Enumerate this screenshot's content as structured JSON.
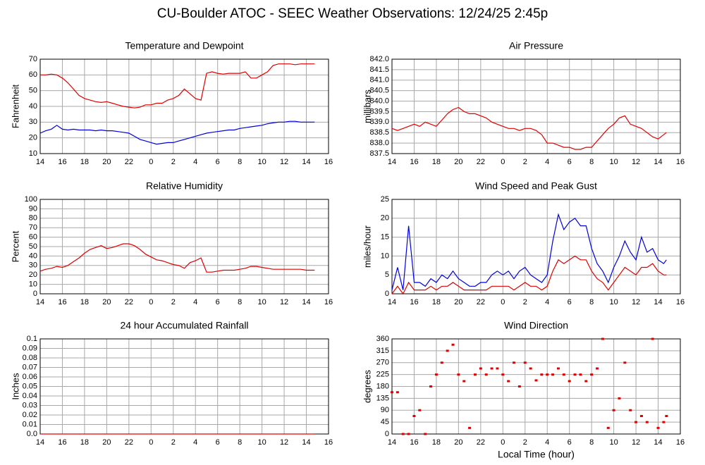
{
  "title": "CU-Boulder ATOC - SEEC Weather Observations: 12/24/25 2:45p",
  "chart_data": [
    {
      "type": "line",
      "title": "Temperature and Dewpoint",
      "y_label": "Fahrenheit",
      "x": [
        14,
        14.5,
        15,
        15.5,
        16,
        16.5,
        17,
        17.5,
        18,
        18.5,
        19,
        19.5,
        20,
        20.5,
        21,
        21.5,
        22,
        22.5,
        23,
        23.5,
        24,
        24.5,
        25,
        25.5,
        26,
        26.5,
        27,
        27.5,
        28,
        28.5,
        29,
        29.5,
        30,
        30.5,
        31,
        31.5,
        32,
        32.5,
        33,
        33.5,
        34,
        34.5,
        35,
        35.5,
        36,
        36.5,
        37,
        37.5,
        38,
        38.5,
        38.75
      ],
      "series": [
        {
          "color": "#e00000",
          "values": [
            60,
            60,
            60.5,
            60,
            58,
            55,
            51,
            47,
            45,
            44,
            43,
            42.5,
            43,
            42,
            41,
            40,
            39.5,
            39,
            39.5,
            41,
            41,
            42,
            42,
            44,
            45,
            47,
            51,
            48,
            45,
            44,
            61,
            62,
            61,
            60.5,
            61,
            61,
            61,
            62,
            58,
            58,
            60,
            62,
            66,
            67,
            67,
            67,
            66.5,
            67,
            67,
            67,
            67
          ]
        },
        {
          "color": "#0000e0",
          "values": [
            23,
            24.5,
            25.5,
            28,
            25.5,
            25,
            25.5,
            25,
            25,
            25,
            24.5,
            25,
            24.5,
            24.5,
            24,
            23.5,
            23,
            21,
            19,
            18,
            17,
            16,
            16.5,
            17,
            17,
            18,
            19,
            20,
            21,
            22,
            23,
            23.5,
            24,
            24.5,
            25,
            25,
            26,
            26.5,
            27,
            27.5,
            28,
            29,
            29.5,
            30,
            30,
            30.5,
            30.5,
            30,
            30,
            30,
            30
          ]
        }
      ],
      "xlim": [
        14,
        40
      ],
      "xticks": [
        14,
        16,
        18,
        20,
        22,
        {
          "value": 24,
          "label": "0"
        },
        {
          "value": 26,
          "label": "2"
        },
        {
          "value": 28,
          "label": "4"
        },
        {
          "value": 30,
          "label": "6"
        },
        {
          "value": 32,
          "label": "8"
        },
        {
          "value": 34,
          "label": "10"
        },
        {
          "value": 36,
          "label": "12"
        },
        {
          "value": 38,
          "label": "14"
        },
        {
          "value": 40,
          "label": "16"
        }
      ],
      "ylim": [
        10,
        70
      ],
      "yticks": [
        10,
        20,
        30,
        40,
        50,
        60,
        70
      ],
      "grid": true
    },
    {
      "type": "line",
      "title": "Air Pressure",
      "y_label": "millibars",
      "x": [
        14,
        14.5,
        15,
        15.5,
        16,
        16.5,
        17,
        17.5,
        18,
        18.5,
        19,
        19.5,
        20,
        20.5,
        21,
        21.5,
        22,
        22.5,
        23,
        23.5,
        24,
        24.5,
        25,
        25.5,
        26,
        26.5,
        27,
        27.5,
        28,
        28.5,
        29,
        29.5,
        30,
        30.5,
        31,
        31.5,
        32,
        32.5,
        33,
        33.5,
        34,
        34.5,
        35,
        35.5,
        36,
        36.5,
        37,
        37.5,
        38,
        38.5,
        38.75
      ],
      "series": [
        {
          "color": "#e00000",
          "values": [
            838.7,
            838.6,
            838.7,
            838.8,
            838.9,
            838.8,
            839.0,
            838.9,
            838.8,
            839.1,
            839.4,
            839.6,
            839.7,
            839.5,
            839.4,
            839.4,
            839.3,
            839.2,
            839.0,
            838.9,
            838.8,
            838.7,
            838.7,
            838.6,
            838.7,
            838.7,
            838.6,
            838.4,
            838.0,
            838.0,
            837.9,
            837.8,
            837.8,
            837.7,
            837.7,
            837.8,
            837.8,
            838.1,
            838.4,
            838.7,
            838.9,
            839.2,
            839.3,
            838.9,
            838.8,
            838.7,
            838.5,
            838.3,
            838.2,
            838.4,
            838.5
          ]
        }
      ],
      "xlim": [
        14,
        40
      ],
      "xticks": [
        14,
        16,
        18,
        20,
        22,
        {
          "value": 24,
          "label": "0"
        },
        {
          "value": 26,
          "label": "2"
        },
        {
          "value": 28,
          "label": "4"
        },
        {
          "value": 30,
          "label": "6"
        },
        {
          "value": 32,
          "label": "8"
        },
        {
          "value": 34,
          "label": "10"
        },
        {
          "value": 36,
          "label": "12"
        },
        {
          "value": 38,
          "label": "14"
        },
        {
          "value": 40,
          "label": "16"
        }
      ],
      "ylim": [
        837.5,
        842.0
      ],
      "yticks": [
        837.5,
        {
          "value": 838,
          "label": "838.0"
        },
        838.5,
        {
          "value": 839,
          "label": "839.0"
        },
        839.5,
        {
          "value": 840,
          "label": "840.0"
        },
        840.5,
        {
          "value": 841,
          "label": "841.0"
        },
        841.5,
        {
          "value": 842,
          "label": "842.0"
        }
      ],
      "grid": true
    },
    {
      "type": "line",
      "title": "Relative Humidity",
      "y_label": "Percent",
      "x": [
        14,
        14.5,
        15,
        15.5,
        16,
        16.5,
        17,
        17.5,
        18,
        18.5,
        19,
        19.5,
        20,
        20.5,
        21,
        21.5,
        22,
        22.5,
        23,
        23.5,
        24,
        24.5,
        25,
        25.5,
        26,
        26.5,
        27,
        27.5,
        28,
        28.5,
        29,
        29.5,
        30,
        30.5,
        31,
        31.5,
        32,
        32.5,
        33,
        33.5,
        34,
        34.5,
        35,
        35.5,
        36,
        36.5,
        37,
        37.5,
        38,
        38.5,
        38.75
      ],
      "series": [
        {
          "color": "#e00000",
          "values": [
            24,
            26,
            27,
            29,
            28,
            30,
            34,
            38,
            43,
            47,
            49,
            51,
            48,
            49,
            51,
            53,
            53,
            51,
            47,
            42,
            39,
            36,
            35,
            33,
            31,
            30,
            27,
            33,
            35,
            38,
            23,
            23,
            24,
            25,
            25,
            25,
            26,
            27,
            29,
            29,
            28,
            27,
            26,
            26,
            26,
            26,
            26,
            26,
            25,
            25,
            25
          ]
        }
      ],
      "xlim": [
        14,
        40
      ],
      "xticks": [
        14,
        16,
        18,
        20,
        22,
        {
          "value": 24,
          "label": "0"
        },
        {
          "value": 26,
          "label": "2"
        },
        {
          "value": 28,
          "label": "4"
        },
        {
          "value": 30,
          "label": "6"
        },
        {
          "value": 32,
          "label": "8"
        },
        {
          "value": 34,
          "label": "10"
        },
        {
          "value": 36,
          "label": "12"
        },
        {
          "value": 38,
          "label": "14"
        },
        {
          "value": 40,
          "label": "16"
        }
      ],
      "ylim": [
        0,
        100
      ],
      "yticks": [
        0,
        10,
        20,
        30,
        40,
        50,
        60,
        70,
        80,
        90,
        100
      ],
      "grid": true
    },
    {
      "type": "line",
      "title": "Wind Speed and Peak Gust",
      "y_label": "miles/hour",
      "x": [
        14,
        14.5,
        15,
        15.5,
        16,
        16.5,
        17,
        17.5,
        18,
        18.5,
        19,
        19.5,
        20,
        20.5,
        21,
        21.5,
        22,
        22.5,
        23,
        23.5,
        24,
        24.5,
        25,
        25.5,
        26,
        26.5,
        27,
        27.5,
        28,
        28.5,
        29,
        29.5,
        30,
        30.5,
        31,
        31.5,
        32,
        32.5,
        33,
        33.5,
        34,
        34.5,
        35,
        35.5,
        36,
        36.5,
        37,
        37.5,
        38,
        38.5,
        38.75
      ],
      "series": [
        {
          "color": "#0000e0",
          "values": [
            1,
            7,
            1,
            18,
            3,
            3,
            2,
            4,
            3,
            5,
            4,
            6,
            4,
            3,
            2,
            2,
            3,
            3,
            5,
            6,
            5,
            6,
            4,
            6,
            7,
            5,
            4,
            3,
            5,
            14,
            21,
            17,
            19,
            20,
            18,
            18,
            12,
            8,
            6,
            3,
            7,
            10,
            14,
            11,
            9,
            15,
            11,
            12,
            9,
            8,
            9
          ]
        },
        {
          "color": "#e00000",
          "values": [
            0,
            2,
            0,
            3,
            1,
            1,
            1,
            2,
            1,
            2,
            2,
            3,
            2,
            1,
            1,
            1,
            1,
            1,
            2,
            2,
            2,
            2,
            1,
            2,
            3,
            2,
            2,
            1,
            2,
            6,
            9,
            8,
            9,
            10,
            9,
            9,
            6,
            4,
            3,
            1,
            3,
            5,
            7,
            6,
            5,
            7,
            7,
            8,
            6,
            5,
            5
          ]
        }
      ],
      "xlim": [
        14,
        40
      ],
      "xticks": [
        14,
        16,
        18,
        20,
        22,
        {
          "value": 24,
          "label": "0"
        },
        {
          "value": 26,
          "label": "2"
        },
        {
          "value": 28,
          "label": "4"
        },
        {
          "value": 30,
          "label": "6"
        },
        {
          "value": 32,
          "label": "8"
        },
        {
          "value": 34,
          "label": "10"
        },
        {
          "value": 36,
          "label": "12"
        },
        {
          "value": 38,
          "label": "14"
        },
        {
          "value": 40,
          "label": "16"
        }
      ],
      "ylim": [
        0,
        25
      ],
      "yticks": [
        0,
        5,
        10,
        15,
        20,
        25
      ],
      "grid": true
    },
    {
      "type": "line",
      "title": "24 hour Accumulated Rainfall",
      "y_label": "Inches",
      "x": [
        14,
        38.75
      ],
      "series": [
        {
          "color": "#e00000",
          "values": [
            0,
            0
          ]
        }
      ],
      "xlim": [
        14,
        40
      ],
      "xticks": [
        14,
        16,
        18,
        20,
        22,
        {
          "value": 24,
          "label": "0"
        },
        {
          "value": 26,
          "label": "2"
        },
        {
          "value": 28,
          "label": "4"
        },
        {
          "value": 30,
          "label": "6"
        },
        {
          "value": 32,
          "label": "8"
        },
        {
          "value": 34,
          "label": "10"
        },
        {
          "value": 36,
          "label": "12"
        },
        {
          "value": 38,
          "label": "14"
        },
        {
          "value": 40,
          "label": "16"
        }
      ],
      "ylim": [
        0,
        0.1
      ],
      "yticks": [
        {
          "value": 0,
          "label": "0.0"
        },
        0.01,
        0.02,
        0.03,
        0.04,
        0.05,
        0.06,
        0.07,
        0.08,
        0.09,
        0.1
      ],
      "grid": true
    },
    {
      "type": "scatter",
      "title": "Wind Direction",
      "y_label": "degrees",
      "x_label": "Local Time (hour)",
      "x": [
        14,
        14.5,
        15,
        15.5,
        16,
        16.5,
        17,
        17.5,
        18,
        18.5,
        19,
        19.5,
        20,
        20.5,
        21,
        21.5,
        22,
        22.5,
        23,
        23.5,
        24,
        24.5,
        25,
        25.5,
        26,
        26.5,
        27,
        27.5,
        28,
        28.5,
        29,
        29.5,
        30,
        30.5,
        31,
        31.5,
        32,
        32.5,
        33,
        33.5,
        34,
        34.5,
        35,
        35.5,
        36,
        36.5,
        37,
        37.5,
        38,
        38.5,
        38.75
      ],
      "series": [
        {
          "color": "#e00000",
          "values": [
            158,
            158,
            0,
            0,
            68,
            90,
            0,
            180,
            225,
            270,
            315,
            338,
            225,
            200,
            23,
            225,
            248,
            225,
            248,
            248,
            225,
            200,
            270,
            180,
            270,
            248,
            203,
            225,
            225,
            225,
            248,
            225,
            200,
            225,
            225,
            200,
            225,
            248,
            360,
            23,
            90,
            135,
            270,
            90,
            45,
            68,
            45,
            360,
            23,
            45,
            68
          ]
        }
      ],
      "xlim": [
        14,
        40
      ],
      "xticks": [
        14,
        16,
        18,
        20,
        22,
        {
          "value": 24,
          "label": "0"
        },
        {
          "value": 26,
          "label": "2"
        },
        {
          "value": 28,
          "label": "4"
        },
        {
          "value": 30,
          "label": "6"
        },
        {
          "value": 32,
          "label": "8"
        },
        {
          "value": 34,
          "label": "10"
        },
        {
          "value": 36,
          "label": "12"
        },
        {
          "value": 38,
          "label": "14"
        },
        {
          "value": 40,
          "label": "16"
        }
      ],
      "ylim": [
        0,
        360
      ],
      "yticks": [
        0,
        45,
        90,
        135,
        180,
        225,
        270,
        315,
        360
      ],
      "grid": true
    }
  ]
}
